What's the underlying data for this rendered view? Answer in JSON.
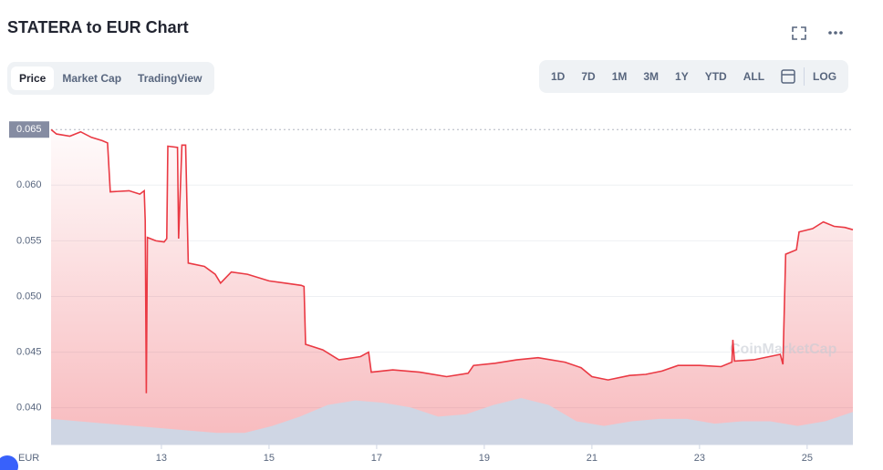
{
  "chart_data": {
    "type": "line",
    "title": "STATERA to EUR Chart",
    "x": [
      10.95,
      11.05,
      11.3,
      11.5,
      11.7,
      11.9,
      12.0,
      12.05,
      12.4,
      12.6,
      12.68,
      12.7,
      12.72,
      12.74,
      12.9,
      13.05,
      13.1,
      13.12,
      13.3,
      13.32,
      13.38,
      13.45,
      13.5,
      13.8,
      14.0,
      14.1,
      14.3,
      14.6,
      15.0,
      15.3,
      15.6,
      15.65,
      15.68,
      16.0,
      16.3,
      16.7,
      16.85,
      16.9,
      17.3,
      17.8,
      18.3,
      18.7,
      18.8,
      19.2,
      19.6,
      20.0,
      20.5,
      20.8,
      21.0,
      21.3,
      21.7,
      22.0,
      22.3,
      22.6,
      23.0,
      23.4,
      23.6,
      23.62,
      23.65,
      24.0,
      24.5,
      24.55,
      24.6,
      24.8,
      24.85,
      25.1,
      25.3,
      25.5,
      25.7,
      25.85
    ],
    "values": [
      0.065,
      0.0646,
      0.0644,
      0.0648,
      0.0643,
      0.064,
      0.0638,
      0.0594,
      0.0595,
      0.0592,
      0.0595,
      0.0568,
      0.0413,
      0.0553,
      0.055,
      0.0549,
      0.0552,
      0.0635,
      0.0634,
      0.0552,
      0.0636,
      0.0636,
      0.053,
      0.0527,
      0.052,
      0.0512,
      0.0522,
      0.052,
      0.0514,
      0.0512,
      0.051,
      0.0509,
      0.0457,
      0.0452,
      0.0443,
      0.0446,
      0.045,
      0.0432,
      0.0434,
      0.0432,
      0.0428,
      0.0431,
      0.0438,
      0.044,
      0.0443,
      0.0445,
      0.0441,
      0.0436,
      0.0428,
      0.0425,
      0.0429,
      0.043,
      0.0433,
      0.0438,
      0.0438,
      0.0437,
      0.0441,
      0.0461,
      0.0442,
      0.0443,
      0.0448,
      0.0439,
      0.0538,
      0.0542,
      0.0558,
      0.0561,
      0.0567,
      0.0563,
      0.0562,
      0.056
    ],
    "color": "#ea3943",
    "xlim": [
      10.95,
      25.85
    ],
    "xticks": [
      13,
      15,
      17,
      19,
      21,
      23,
      25
    ],
    "ylim": [
      0.0367,
      0.066
    ],
    "yticks": [
      {
        "value": 0.04,
        "label": "0.040"
      },
      0.045,
      {
        "value": 0.05,
        "label": "0.050"
      },
      0.055,
      {
        "value": 0.06,
        "label": "0.060"
      },
      0.065
    ],
    "grid": true,
    "currency": "EUR",
    "volume": {
      "color": "#cfd6e4",
      "values": [
        0.55,
        0.5,
        0.45,
        0.4,
        0.35,
        0.3,
        0.25,
        0.25,
        0.4,
        0.6,
        0.85,
        0.95,
        0.9,
        0.8,
        0.6,
        0.65,
        0.85,
        1.0,
        0.85,
        0.5,
        0.4,
        0.5,
        0.55,
        0.55,
        0.45,
        0.5,
        0.5,
        0.4,
        0.5,
        0.7
      ]
    }
  },
  "ui": {
    "tabs": [
      "Price",
      "Market Cap",
      "TradingView"
    ],
    "ranges": [
      "1D",
      "7D",
      "1M",
      "3M",
      "1Y",
      "YTD",
      "ALL"
    ],
    "log": "LOG",
    "watermark": "CoinMarketCap"
  }
}
